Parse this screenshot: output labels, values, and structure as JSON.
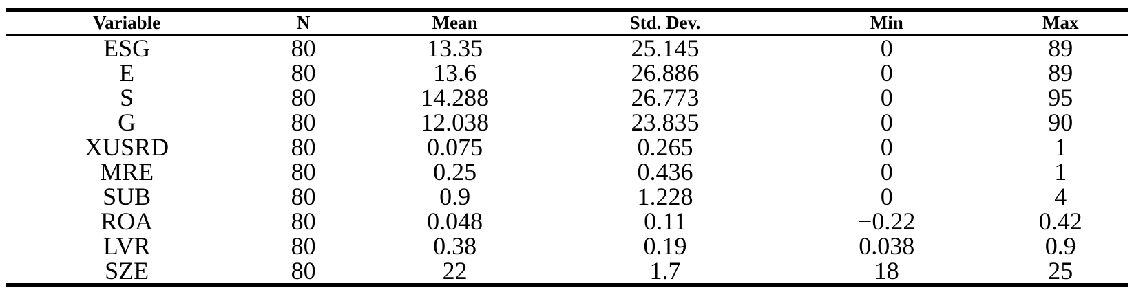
{
  "colors": {
    "text": "#000000",
    "background": "#ffffff",
    "rule": "#000000"
  },
  "table": {
    "name": "descriptive-statistics",
    "columns": [
      {
        "key": "variable",
        "label": "Variable"
      },
      {
        "key": "n",
        "label": "N"
      },
      {
        "key": "mean",
        "label": "Mean"
      },
      {
        "key": "std_dev",
        "label": "Std. Dev."
      },
      {
        "key": "min",
        "label": "Min"
      },
      {
        "key": "max",
        "label": "Max"
      }
    ],
    "rows": [
      [
        "ESG",
        "80",
        "13.35",
        "25.145",
        "0",
        "89"
      ],
      [
        "E",
        "80",
        "13.6",
        "26.886",
        "0",
        "89"
      ],
      [
        "S",
        "80",
        "14.288",
        "26.773",
        "0",
        "95"
      ],
      [
        "G",
        "80",
        "12.038",
        "23.835",
        "0",
        "90"
      ],
      [
        "XUSRD",
        "80",
        "0.075",
        "0.265",
        "0",
        "1"
      ],
      [
        "MRE",
        "80",
        "0.25",
        "0.436",
        "0",
        "1"
      ],
      [
        "SUB",
        "80",
        "0.9",
        "1.228",
        "0",
        "4"
      ],
      [
        "ROA",
        "80",
        "0.048",
        "0.11",
        "−0.22",
        "0.42"
      ],
      [
        "LVR",
        "80",
        "0.38",
        "0.19",
        "0.038",
        "0.9"
      ],
      [
        "SZE",
        "80",
        "22",
        "1.7",
        "18",
        "25"
      ]
    ]
  }
}
